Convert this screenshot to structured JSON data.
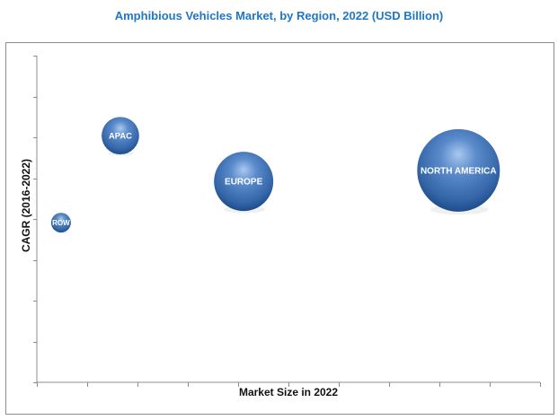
{
  "chart_data": {
    "type": "scatter",
    "subtype": "bubble",
    "title": "Amphibious Vehicles Market, by Region, 2022  (USD Billion)",
    "xlabel": "Market Size in 2022",
    "ylabel": "CAGR (2016-2022)",
    "xlim": [
      0,
      10
    ],
    "ylim": [
      0,
      8
    ],
    "x_tick_count": 11,
    "y_tick_count": 9,
    "tick_labels_shown": false,
    "grid": false,
    "legend": "none",
    "series": [
      {
        "name": "ROW",
        "x": 0.48,
        "y": 3.91,
        "size": 1.0
      },
      {
        "name": "APAC",
        "x": 1.66,
        "y": 6.04,
        "size": 3.6
      },
      {
        "name": "EUROPE",
        "x": 4.11,
        "y": 4.92,
        "size": 9.0
      },
      {
        "name": "NORTH AMERICA",
        "x": 8.38,
        "y": 5.19,
        "size": 17.5
      }
    ],
    "colors": {
      "title": "#1f77c4",
      "bubble_light": "#8fb5e3",
      "bubble_mid": "#4a7cc0",
      "bubble_dark": "#1e4c8a",
      "axis": "#8c8c8c",
      "bubble_text": "#ffffff"
    }
  }
}
